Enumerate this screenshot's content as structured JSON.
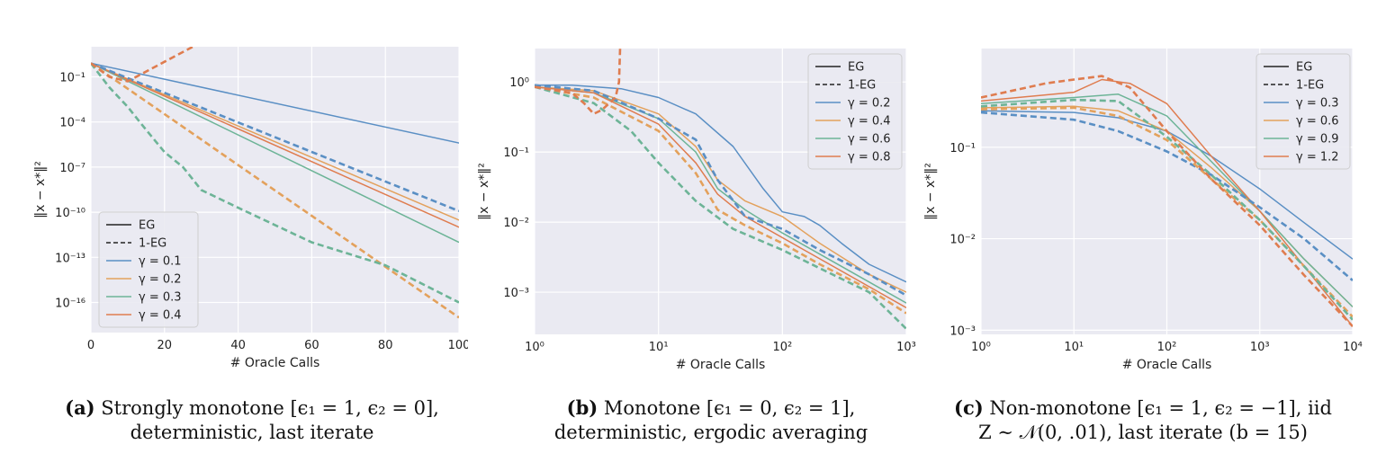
{
  "colors": {
    "blue": "#5a8fc4",
    "yellow": "#e3a15c",
    "green": "#6db497",
    "orange": "#df7c4f",
    "background": "#eaeaf2",
    "grid": "#ffffff"
  },
  "chart_data": [
    {
      "type": "line",
      "panel": "a",
      "xlabel": "# Oracle Calls",
      "ylabel": "‖x − x*‖²",
      "xscale": "linear",
      "yscale": "log",
      "xlim": [
        0,
        100
      ],
      "ylim": [
        1e-18,
        10.0
      ],
      "xticks": [
        0,
        20,
        40,
        60,
        80,
        100
      ],
      "xtick_labels": [
        "0",
        "20",
        "40",
        "60",
        "80",
        "100"
      ],
      "yticks": [
        1e-16,
        1e-13,
        1e-10,
        1e-07,
        0.0001,
        0.1
      ],
      "ytick_labels": [
        "10⁻¹⁶",
        "10⁻¹³",
        "10⁻¹⁰",
        "10⁻⁷",
        "10⁻⁴",
        "10⁻¹"
      ],
      "legend_position": "bottom-left",
      "legend": [
        {
          "label": "EG",
          "style": "solid",
          "color": "#222222"
        },
        {
          "label": "1-EG",
          "style": "dashed",
          "color": "#222222"
        },
        {
          "label": "γ = 0.1",
          "style": "solid",
          "color": "#5a8fc4"
        },
        {
          "label": "γ = 0.2",
          "style": "solid",
          "color": "#e3a15c"
        },
        {
          "label": "γ = 0.3",
          "style": "solid",
          "color": "#6db497"
        },
        {
          "label": "γ = 0.4",
          "style": "solid",
          "color": "#df7c4f"
        }
      ],
      "series": [
        {
          "style": "solid",
          "color": "#5a8fc4",
          "points": [
            [
              0,
              0.8
            ],
            [
              100,
              4e-06
            ]
          ]
        },
        {
          "style": "solid",
          "color": "#e3a15c",
          "points": [
            [
              0,
              0.8
            ],
            [
              100,
              3e-11
            ]
          ]
        },
        {
          "style": "solid",
          "color": "#6db497",
          "points": [
            [
              0,
              0.8
            ],
            [
              100,
              1e-12
            ]
          ]
        },
        {
          "style": "solid",
          "color": "#df7c4f",
          "points": [
            [
              0,
              0.8
            ],
            [
              100,
              1e-11
            ]
          ]
        },
        {
          "style": "dashed",
          "color": "#5a8fc4",
          "points": [
            [
              0,
              0.8
            ],
            [
              100,
              1.2e-10
            ]
          ]
        },
        {
          "style": "dashed",
          "color": "#e3a15c",
          "points": [
            [
              0,
              0.8
            ],
            [
              100,
              1e-17
            ]
          ]
        },
        {
          "style": "dashed",
          "color": "#6db497",
          "points": [
            [
              0,
              0.8
            ],
            [
              5,
              0.02
            ],
            [
              10,
              0.001
            ],
            [
              15,
              3e-05
            ],
            [
              20,
              1e-06
            ],
            [
              25,
              1e-07
            ],
            [
              30,
              3e-09
            ],
            [
              40,
              2e-10
            ],
            [
              60,
              1e-12
            ],
            [
              80,
              3e-14
            ],
            [
              100,
              1e-16
            ]
          ]
        },
        {
          "style": "dashed",
          "color": "#df7c4f",
          "points": [
            [
              0,
              0.8
            ],
            [
              5,
              0.1
            ],
            [
              10,
              0.05
            ],
            [
              20,
              1
            ],
            [
              30,
              20
            ],
            [
              34,
              100
            ]
          ]
        }
      ]
    },
    {
      "type": "line",
      "panel": "b",
      "xlabel": "# Oracle Calls",
      "ylabel": "‖x − x*‖²",
      "xscale": "log",
      "yscale": "log",
      "xlim": [
        1,
        1000
      ],
      "ylim": [
        0.00025,
        3
      ],
      "xticks": [
        1,
        10,
        100,
        1000
      ],
      "xtick_labels": [
        "10⁰",
        "10¹",
        "10²",
        "10³"
      ],
      "yticks": [
        0.001,
        0.01,
        0.1,
        1
      ],
      "ytick_labels": [
        "10⁻³",
        "10⁻²",
        "10⁻¹",
        "10⁰"
      ],
      "legend_position": "top-right",
      "legend": [
        {
          "label": "EG",
          "style": "solid",
          "color": "#222222"
        },
        {
          "label": "1-EG",
          "style": "dashed",
          "color": "#222222"
        },
        {
          "label": "γ = 0.2",
          "style": "solid",
          "color": "#5a8fc4"
        },
        {
          "label": "γ = 0.4",
          "style": "solid",
          "color": "#e3a15c"
        },
        {
          "label": "γ = 0.6",
          "style": "solid",
          "color": "#6db497"
        },
        {
          "label": "γ = 0.8",
          "style": "solid",
          "color": "#df7c4f"
        }
      ],
      "series": [
        {
          "style": "solid",
          "color": "#5a8fc4",
          "points": [
            [
              1,
              0.9
            ],
            [
              2,
              0.9
            ],
            [
              5,
              0.8
            ],
            [
              10,
              0.6
            ],
            [
              20,
              0.35
            ],
            [
              40,
              0.12
            ],
            [
              70,
              0.03
            ],
            [
              100,
              0.014
            ],
            [
              150,
              0.012
            ],
            [
              200,
              0.009
            ],
            [
              300,
              0.005
            ],
            [
              500,
              0.0025
            ],
            [
              1000,
              0.0014
            ]
          ]
        },
        {
          "style": "solid",
          "color": "#e3a15c",
          "points": [
            [
              1,
              0.85
            ],
            [
              3,
              0.75
            ],
            [
              10,
              0.35
            ],
            [
              20,
              0.12
            ],
            [
              30,
              0.04
            ],
            [
              50,
              0.02
            ],
            [
              100,
              0.012
            ],
            [
              200,
              0.005
            ],
            [
              500,
              0.0018
            ],
            [
              1000,
              0.001
            ]
          ]
        },
        {
          "style": "solid",
          "color": "#6db497",
          "points": [
            [
              1,
              0.85
            ],
            [
              3,
              0.7
            ],
            [
              10,
              0.3
            ],
            [
              20,
              0.1
            ],
            [
              30,
              0.03
            ],
            [
              50,
              0.015
            ],
            [
              100,
              0.007
            ],
            [
              200,
              0.0035
            ],
            [
              500,
              0.0014
            ],
            [
              1000,
              0.0007
            ]
          ]
        },
        {
          "style": "solid",
          "color": "#df7c4f",
          "points": [
            [
              1,
              0.85
            ],
            [
              3,
              0.7
            ],
            [
              10,
              0.25
            ],
            [
              20,
              0.07
            ],
            [
              30,
              0.025
            ],
            [
              50,
              0.012
            ],
            [
              100,
              0.006
            ],
            [
              200,
              0.003
            ],
            [
              500,
              0.0012
            ],
            [
              1000,
              0.0006
            ]
          ]
        },
        {
          "style": "dashed",
          "color": "#5a8fc4",
          "points": [
            [
              1,
              0.9
            ],
            [
              3,
              0.75
            ],
            [
              10,
              0.3
            ],
            [
              20,
              0.15
            ],
            [
              30,
              0.04
            ],
            [
              50,
              0.012
            ],
            [
              100,
              0.008
            ],
            [
              200,
              0.004
            ],
            [
              500,
              0.0018
            ],
            [
              1000,
              0.0009
            ]
          ]
        },
        {
          "style": "dashed",
          "color": "#e3a15c",
          "points": [
            [
              1,
              0.85
            ],
            [
              3,
              0.6
            ],
            [
              10,
              0.2
            ],
            [
              20,
              0.05
            ],
            [
              30,
              0.015
            ],
            [
              50,
              0.009
            ],
            [
              100,
              0.005
            ],
            [
              200,
              0.0025
            ],
            [
              500,
              0.0011
            ],
            [
              1000,
              0.0005
            ]
          ]
        },
        {
          "style": "dashed",
          "color": "#6db497",
          "points": [
            [
              1,
              0.85
            ],
            [
              3,
              0.5
            ],
            [
              6,
              0.2
            ],
            [
              10,
              0.07
            ],
            [
              20,
              0.02
            ],
            [
              40,
              0.008
            ],
            [
              100,
              0.004
            ],
            [
              200,
              0.0022
            ],
            [
              500,
              0.001
            ],
            [
              1000,
              0.0003
            ]
          ]
        },
        {
          "style": "dashed",
          "color": "#df7c4f",
          "points": [
            [
              1,
              0.85
            ],
            [
              2,
              0.7
            ],
            [
              2.5,
              0.5
            ],
            [
              3,
              0.35
            ],
            [
              3.5,
              0.4
            ],
            [
              4.5,
              0.6
            ],
            [
              4.8,
              1.0
            ],
            [
              4.9,
              3
            ]
          ]
        }
      ]
    },
    {
      "type": "line",
      "panel": "c",
      "xlabel": "# Oracle Calls",
      "ylabel": "‖x − x*‖²",
      "xscale": "log",
      "yscale": "log",
      "xlim": [
        1,
        10000
      ],
      "ylim": [
        0.0009,
        1.2
      ],
      "xticks": [
        1,
        10,
        100,
        1000,
        10000
      ],
      "xtick_labels": [
        "10⁰",
        "10¹",
        "10²",
        "10³",
        "10⁴"
      ],
      "yticks": [
        0.001,
        0.01,
        0.1
      ],
      "ytick_labels": [
        "10⁻³",
        "10⁻²",
        "10⁻¹"
      ],
      "legend_position": "top-right",
      "legend": [
        {
          "label": "EG",
          "style": "solid",
          "color": "#222222"
        },
        {
          "label": "1-EG",
          "style": "dashed",
          "color": "#222222"
        },
        {
          "label": "γ = 0.3",
          "style": "solid",
          "color": "#5a8fc4"
        },
        {
          "label": "γ = 0.6",
          "style": "solid",
          "color": "#e3a15c"
        },
        {
          "label": "γ = 0.9",
          "style": "solid",
          "color": "#6db497"
        },
        {
          "label": "γ = 1.2",
          "style": "solid",
          "color": "#df7c4f"
        }
      ],
      "series": [
        {
          "style": "solid",
          "color": "#5a8fc4",
          "points": [
            [
              1,
              0.25
            ],
            [
              10,
              0.24
            ],
            [
              30,
              0.21
            ],
            [
              100,
              0.15
            ],
            [
              300,
              0.08
            ],
            [
              1000,
              0.035
            ],
            [
              3000,
              0.015
            ],
            [
              10000,
              0.006
            ]
          ]
        },
        {
          "style": "solid",
          "color": "#e3a15c",
          "points": [
            [
              1,
              0.27
            ],
            [
              10,
              0.28
            ],
            [
              30,
              0.25
            ],
            [
              100,
              0.15
            ],
            [
              300,
              0.06
            ],
            [
              1000,
              0.02
            ],
            [
              3000,
              0.006
            ],
            [
              10000,
              0.0018
            ]
          ]
        },
        {
          "style": "solid",
          "color": "#6db497",
          "points": [
            [
              1,
              0.3
            ],
            [
              10,
              0.35
            ],
            [
              30,
              0.38
            ],
            [
              100,
              0.22
            ],
            [
              300,
              0.07
            ],
            [
              1000,
              0.02
            ],
            [
              3000,
              0.006
            ],
            [
              10000,
              0.0018
            ]
          ]
        },
        {
          "style": "solid",
          "color": "#df7c4f",
          "points": [
            [
              1,
              0.32
            ],
            [
              10,
              0.4
            ],
            [
              20,
              0.55
            ],
            [
              40,
              0.5
            ],
            [
              100,
              0.3
            ],
            [
              300,
              0.08
            ],
            [
              1000,
              0.02
            ],
            [
              3000,
              0.005
            ],
            [
              10000,
              0.0011
            ]
          ]
        },
        {
          "style": "dashed",
          "color": "#5a8fc4",
          "points": [
            [
              1,
              0.24
            ],
            [
              10,
              0.2
            ],
            [
              30,
              0.15
            ],
            [
              100,
              0.09
            ],
            [
              300,
              0.05
            ],
            [
              1000,
              0.022
            ],
            [
              3000,
              0.01
            ],
            [
              10000,
              0.0035
            ]
          ]
        },
        {
          "style": "dashed",
          "color": "#e3a15c",
          "points": [
            [
              1,
              0.26
            ],
            [
              10,
              0.27
            ],
            [
              30,
              0.22
            ],
            [
              100,
              0.12
            ],
            [
              300,
              0.045
            ],
            [
              1000,
              0.016
            ],
            [
              3000,
              0.005
            ],
            [
              10000,
              0.0014
            ]
          ]
        },
        {
          "style": "dashed",
          "color": "#6db497",
          "points": [
            [
              1,
              0.28
            ],
            [
              10,
              0.33
            ],
            [
              30,
              0.32
            ],
            [
              100,
              0.13
            ],
            [
              300,
              0.05
            ],
            [
              1000,
              0.016
            ],
            [
              3000,
              0.005
            ],
            [
              10000,
              0.0013
            ]
          ]
        },
        {
          "style": "dashed",
          "color": "#df7c4f",
          "points": [
            [
              1,
              0.35
            ],
            [
              5,
              0.5
            ],
            [
              10,
              0.55
            ],
            [
              20,
              0.6
            ],
            [
              40,
              0.45
            ],
            [
              100,
              0.15
            ],
            [
              300,
              0.045
            ],
            [
              1000,
              0.014
            ],
            [
              3000,
              0.004
            ],
            [
              10000,
              0.0011
            ]
          ]
        }
      ]
    }
  ],
  "captions": {
    "a_label": "(a)",
    "a_line1": " Strongly monotone [ϵ₁ = 1, ϵ₂ = 0],",
    "a_line2": "deterministic, last iterate",
    "b_label": "(b)",
    "b_line1": " Monotone [ϵ₁ = 0, ϵ₂ = 1],",
    "b_line2": "deterministic, ergodic averaging",
    "c_label": "(c)",
    "c_line1": " Non-monotone [ϵ₁ = 1, ϵ₂ = −1], iid",
    "c_line2": "Z ∼ 𝒩(0, .01), last iterate (b = 15)"
  }
}
